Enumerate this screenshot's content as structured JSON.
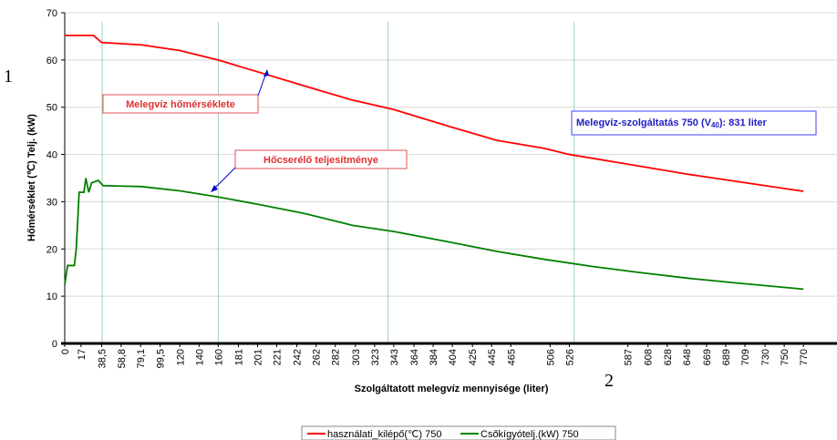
{
  "chart_data": {
    "type": "line",
    "xlabel": "Szolgáltatott melegvíz mennyisége (liter)",
    "ylabel": "Hőmérséklet (℃) Telj. (kW)",
    "xlim": [
      0,
      805
    ],
    "ylim": [
      0,
      70
    ],
    "yticks": [
      0,
      10,
      20,
      30,
      40,
      50,
      60,
      70
    ],
    "xticks": [
      0,
      17,
      {
        "value": 38.5,
        "label": "38,5"
      },
      {
        "value": 58.8,
        "label": "58,8"
      },
      {
        "value": 79.1,
        "label": "79,1"
      },
      {
        "value": 99.5,
        "label": "99,5"
      },
      120,
      140,
      160,
      181,
      201,
      221,
      242,
      262,
      282,
      303,
      323,
      343,
      364,
      384,
      404,
      425,
      445,
      465,
      506,
      526,
      587,
      608,
      628,
      648,
      669,
      689,
      709,
      730,
      750,
      770
    ],
    "grid": true,
    "reference_lines": [
      39,
      160,
      337,
      531
    ],
    "series": [
      {
        "name": "használati_kilépő(℃) 750",
        "color": "#ff0000",
        "x": [
          0,
          30,
          38.5,
          80,
          120,
          160,
          201,
          250,
          300,
          343,
          400,
          450,
          500,
          526,
          600,
          650,
          700,
          770
        ],
        "values": [
          65.2,
          65.2,
          63.7,
          63.2,
          62,
          60,
          57.5,
          54.5,
          51.5,
          49.5,
          46,
          43,
          41.3,
          40,
          37.5,
          35.8,
          34.3,
          32.2
        ]
      },
      {
        "name": "Csőkígyótelj.(kW) 750",
        "color": "#008000",
        "x": [
          0,
          3,
          10,
          12,
          15,
          20,
          22,
          25,
          28,
          35,
          40,
          80,
          120,
          160,
          200,
          250,
          300,
          343,
          400,
          450,
          500,
          550,
          600,
          650,
          700,
          770
        ],
        "values": [
          12.5,
          16.5,
          16.5,
          20,
          32,
          32,
          35,
          32,
          34,
          34.5,
          33.4,
          33.2,
          32.3,
          31,
          29.5,
          27.5,
          25,
          23.7,
          21.5,
          19.5,
          17.8,
          16.3,
          15,
          13.8,
          12.8,
          11.5
        ]
      }
    ],
    "annotations": [
      "Melegvíz hőmérséklete",
      "Hőcserélő teljesítménye"
    ],
    "info_box": [
      "Melegvíz-szolgáltatás 750 (V",
      "40",
      "): 831 liter"
    ],
    "markers": [
      "1",
      "2"
    ]
  }
}
